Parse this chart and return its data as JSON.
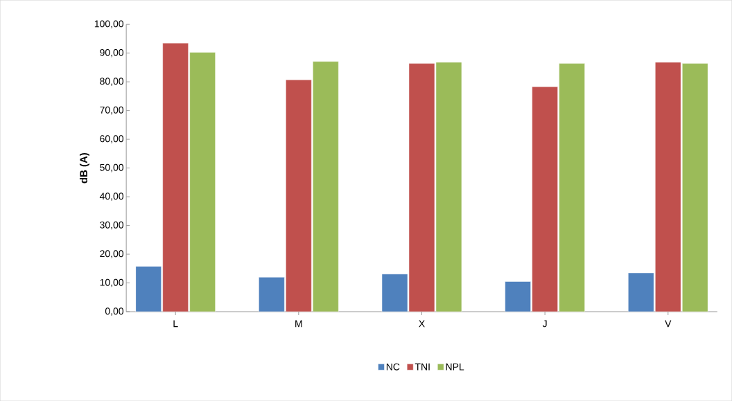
{
  "chart_data": {
    "type": "bar",
    "ylabel": "dB (A)",
    "categories": [
      "L",
      "M",
      "X",
      "J",
      "V"
    ],
    "series": [
      {
        "name": "NC",
        "color": "#4f81bd",
        "values": [
          15.8,
          12.0,
          13.1,
          10.5,
          13.5
        ]
      },
      {
        "name": "TNI",
        "color": "#c0504d",
        "values": [
          93.5,
          80.7,
          86.4,
          78.3,
          86.8
        ]
      },
      {
        "name": "NPL",
        "color": "#9bbb59",
        "values": [
          90.3,
          87.1,
          86.8,
          86.4,
          86.4
        ]
      }
    ],
    "ylim": [
      0,
      100
    ],
    "yticks": [
      {
        "value": 0,
        "label": "0,00"
      },
      {
        "value": 10,
        "label": "10,00"
      },
      {
        "value": 20,
        "label": "20,00"
      },
      {
        "value": 30,
        "label": "30,00"
      },
      {
        "value": 40,
        "label": "40,00"
      },
      {
        "value": 50,
        "label": "50,00"
      },
      {
        "value": 60,
        "label": "60,00"
      },
      {
        "value": 70,
        "label": "70,00"
      },
      {
        "value": 80,
        "label": "80,00"
      },
      {
        "value": 90,
        "label": "90,00"
      },
      {
        "value": 100,
        "label": "100,00"
      }
    ],
    "grid": false,
    "legend": "bottom"
  }
}
